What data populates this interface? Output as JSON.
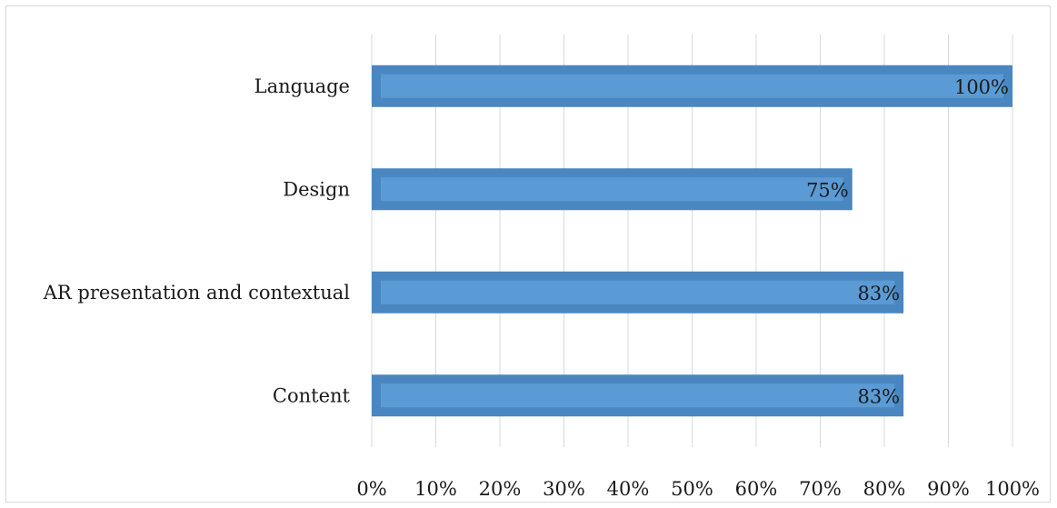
{
  "chart_data": {
    "type": "bar",
    "orientation": "horizontal",
    "categories": [
      "Language",
      "Design",
      "AR presentation and contextual",
      "Content"
    ],
    "values": [
      100,
      75,
      83,
      83
    ],
    "data_labels": [
      "100%",
      "75%",
      "83%",
      "83%"
    ],
    "xlim": [
      0,
      100
    ],
    "xticks": [
      0,
      10,
      20,
      30,
      40,
      50,
      60,
      70,
      80,
      90,
      100
    ],
    "xtick_labels": [
      "0%",
      "10%",
      "20%",
      "30%",
      "40%",
      "50%",
      "60%",
      "70%",
      "80%",
      "90%",
      "100%"
    ],
    "grid": "vertical",
    "legend": "none",
    "colors": {
      "bar_fill": "#5b9bd5",
      "bar_edge": "#4a86c0",
      "grid": "#d9d9d9",
      "frame": "#d9d9d9"
    }
  }
}
